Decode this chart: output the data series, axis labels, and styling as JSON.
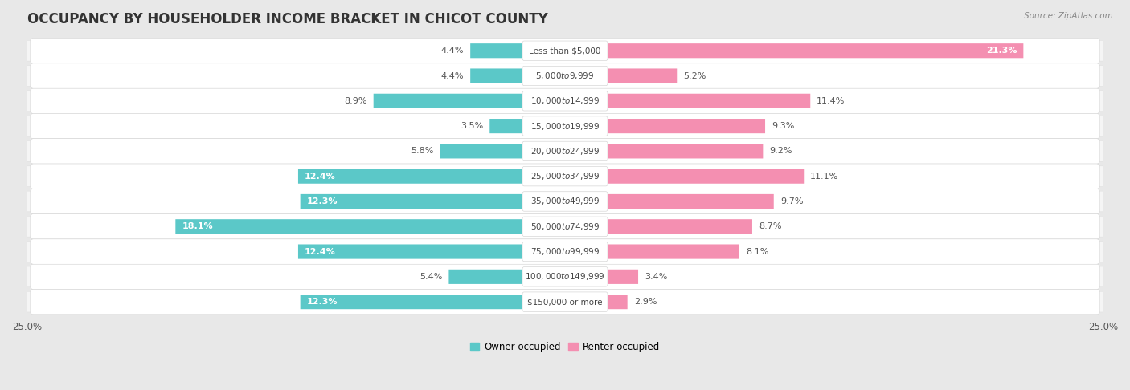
{
  "title": "OCCUPANCY BY HOUSEHOLDER INCOME BRACKET IN CHICOT COUNTY",
  "source": "Source: ZipAtlas.com",
  "categories": [
    "Less than $5,000",
    "$5,000 to $9,999",
    "$10,000 to $14,999",
    "$15,000 to $19,999",
    "$20,000 to $24,999",
    "$25,000 to $34,999",
    "$35,000 to $49,999",
    "$50,000 to $74,999",
    "$75,000 to $99,999",
    "$100,000 to $149,999",
    "$150,000 or more"
  ],
  "owner_values": [
    4.4,
    4.4,
    8.9,
    3.5,
    5.8,
    12.4,
    12.3,
    18.1,
    12.4,
    5.4,
    12.3
  ],
  "renter_values": [
    21.3,
    5.2,
    11.4,
    9.3,
    9.2,
    11.1,
    9.7,
    8.7,
    8.1,
    3.4,
    2.9
  ],
  "owner_color": "#5BC8C8",
  "renter_color": "#F48FB1",
  "background_color": "#e8e8e8",
  "row_bg_color": "#f5f5f5",
  "bar_background": "#ffffff",
  "xlim": 25.0,
  "legend_owner": "Owner-occupied",
  "legend_renter": "Renter-occupied",
  "title_fontsize": 12,
  "label_fontsize": 8,
  "cat_fontsize": 7.5,
  "axis_fontsize": 8.5
}
